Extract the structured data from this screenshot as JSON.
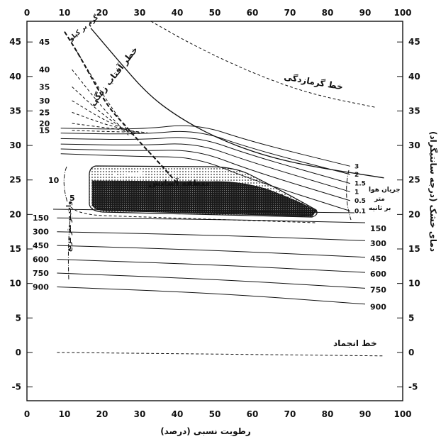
{
  "chart_data": {
    "type": "line",
    "xlabel": "رطوبت نسبی (درصد)",
    "ylabel": "دمای خشک (درجه سانتیگراد)",
    "xlim": [
      0,
      100
    ],
    "ylim": [
      -7,
      48
    ],
    "x_ticks": [
      0,
      10,
      20,
      30,
      40,
      50,
      60,
      70,
      80,
      90,
      100
    ],
    "y_ticks": [
      45,
      40,
      35,
      30,
      25,
      20,
      15,
      10,
      5,
      0,
      -5
    ],
    "annotations": {
      "heat_stroke": "خط گرمازدگی",
      "sunstroke": "خطر آفتاب زدگی",
      "freezing": "خط انجماد",
      "comfort": "منطقه آسایش",
      "summer": "تابستان",
      "air_speed": "جریان هوا",
      "meters": "متر",
      "per_second": "بر ثانیه",
      "radiation": "وات بر متر مربع",
      "radiation_unit": "گرم بر کیلو",
      "num_ten": "10",
      "num_five": "5"
    },
    "radiation_labels": [
      "45",
      "40",
      "35",
      "30",
      "25",
      "20",
      "15"
    ],
    "wind_labels": [
      "3",
      "2",
      "1.5",
      "1",
      "0.5",
      "0.1"
    ],
    "solar_left": [
      "150",
      "300",
      "450",
      "600",
      "750",
      "900"
    ],
    "solar_right": [
      "150",
      "300",
      "450",
      "600",
      "750",
      "900"
    ],
    "series": [
      {
        "key": "heat_stroke",
        "style": "dashed",
        "points": [
          [
            33,
            48
          ],
          [
            45,
            44.3
          ],
          [
            60,
            40.5
          ],
          [
            75,
            37.5
          ],
          [
            93,
            35.5
          ]
        ]
      },
      {
        "key": "boundary",
        "style": "solid",
        "points": [
          [
            17,
            47
          ],
          [
            24,
            42.5
          ],
          [
            32,
            37.5
          ],
          [
            40,
            34.2
          ],
          [
            50,
            31.2
          ],
          [
            62,
            28.7
          ],
          [
            75,
            27.0
          ],
          [
            95,
            25.3
          ]
        ]
      },
      {
        "key": "freezing",
        "style": "dashed",
        "points": [
          [
            8,
            0
          ],
          [
            95,
            -0.5
          ]
        ]
      },
      {
        "key": "solar_150",
        "style": "solid",
        "points": [
          [
            8,
            19.5
          ],
          [
            50,
            19.3
          ],
          [
            90,
            18.8
          ]
        ]
      },
      {
        "key": "solar_300",
        "style": "solid",
        "points": [
          [
            8,
            17.5
          ],
          [
            50,
            17.0
          ],
          [
            90,
            16.2
          ]
        ]
      },
      {
        "key": "solar_450",
        "style": "solid",
        "points": [
          [
            8,
            15.5
          ],
          [
            50,
            14.8
          ],
          [
            90,
            13.8
          ]
        ]
      },
      {
        "key": "solar_600",
        "style": "solid",
        "points": [
          [
            8,
            13.5
          ],
          [
            50,
            12.7
          ],
          [
            90,
            11.6
          ]
        ]
      },
      {
        "key": "solar_750",
        "style": "solid",
        "points": [
          [
            8,
            11.5
          ],
          [
            50,
            10.6
          ],
          [
            90,
            9.3
          ]
        ]
      },
      {
        "key": "solar_900",
        "style": "solid",
        "points": [
          [
            8,
            9.5
          ],
          [
            50,
            8.6
          ],
          [
            90,
            7.0
          ]
        ]
      },
      {
        "key": "wind_3",
        "style": "solid",
        "points": [
          [
            9,
            32.5
          ],
          [
            30,
            32.3
          ],
          [
            45,
            33.2
          ],
          [
            60,
            30.5
          ],
          [
            86,
            27.0
          ]
        ]
      },
      {
        "key": "wind_2",
        "style": "solid",
        "points": [
          [
            9,
            31.8
          ],
          [
            30,
            31.6
          ],
          [
            45,
            32.3
          ],
          [
            60,
            29.5
          ],
          [
            86,
            25.8
          ]
        ]
      },
      {
        "key": "wind_1_5",
        "style": "solid",
        "points": [
          [
            9,
            31.0
          ],
          [
            30,
            30.8
          ],
          [
            45,
            31.4
          ],
          [
            60,
            28.5
          ],
          [
            86,
            24.5
          ]
        ]
      },
      {
        "key": "wind_1",
        "style": "solid",
        "points": [
          [
            9,
            30.2
          ],
          [
            30,
            30.0
          ],
          [
            45,
            30.4
          ],
          [
            60,
            27.5
          ],
          [
            86,
            23.3
          ]
        ]
      },
      {
        "key": "wind_0_5",
        "style": "solid",
        "points": [
          [
            9,
            29.5
          ],
          [
            30,
            29.2
          ],
          [
            45,
            29.4
          ],
          [
            60,
            26.3
          ],
          [
            86,
            22.0
          ]
        ]
      },
      {
        "key": "wind_0_1",
        "style": "solid",
        "points": [
          [
            9,
            28.8
          ],
          [
            30,
            28.4
          ],
          [
            45,
            28.3
          ],
          [
            60,
            25.0
          ],
          [
            86,
            20.5
          ]
        ]
      },
      {
        "key": "rad_45",
        "style": "dashed",
        "points": [
          [
            12,
            44.8
          ],
          [
            20,
            37.5
          ],
          [
            27,
            32.0
          ]
        ]
      },
      {
        "key": "rad_40",
        "style": "dashed",
        "points": [
          [
            12,
            41.0
          ],
          [
            20,
            35.5
          ],
          [
            27,
            31.5
          ]
        ]
      },
      {
        "key": "rad_35",
        "style": "dashed",
        "points": [
          [
            12,
            38.5
          ],
          [
            20,
            34.5
          ],
          [
            28,
            31.6
          ]
        ]
      },
      {
        "key": "rad_30",
        "style": "dashed",
        "points": [
          [
            12,
            36.5
          ],
          [
            21,
            33.5
          ],
          [
            29,
            31.7
          ]
        ]
      },
      {
        "key": "rad_25",
        "style": "dashed",
        "points": [
          [
            12,
            34.8
          ],
          [
            21,
            33.0
          ],
          [
            30,
            31.8
          ]
        ]
      },
      {
        "key": "rad_20",
        "style": "dashed",
        "points": [
          [
            12,
            33.2
          ],
          [
            22,
            32.5
          ],
          [
            31,
            31.9
          ]
        ]
      },
      {
        "key": "rad_15",
        "style": "dashed",
        "points": [
          [
            12,
            32.2
          ],
          [
            22,
            32.0
          ],
          [
            32,
            31.9
          ]
        ]
      },
      {
        "key": "sunstroke",
        "style": "dashed",
        "points": [
          [
            10,
            46.5
          ],
          [
            14,
            43.0
          ],
          [
            18,
            39.0
          ],
          [
            22,
            35.3
          ],
          [
            26,
            33.0
          ],
          [
            30,
            30.5
          ],
          [
            36,
            27.0
          ],
          [
            40,
            24.5
          ]
        ]
      }
    ]
  }
}
